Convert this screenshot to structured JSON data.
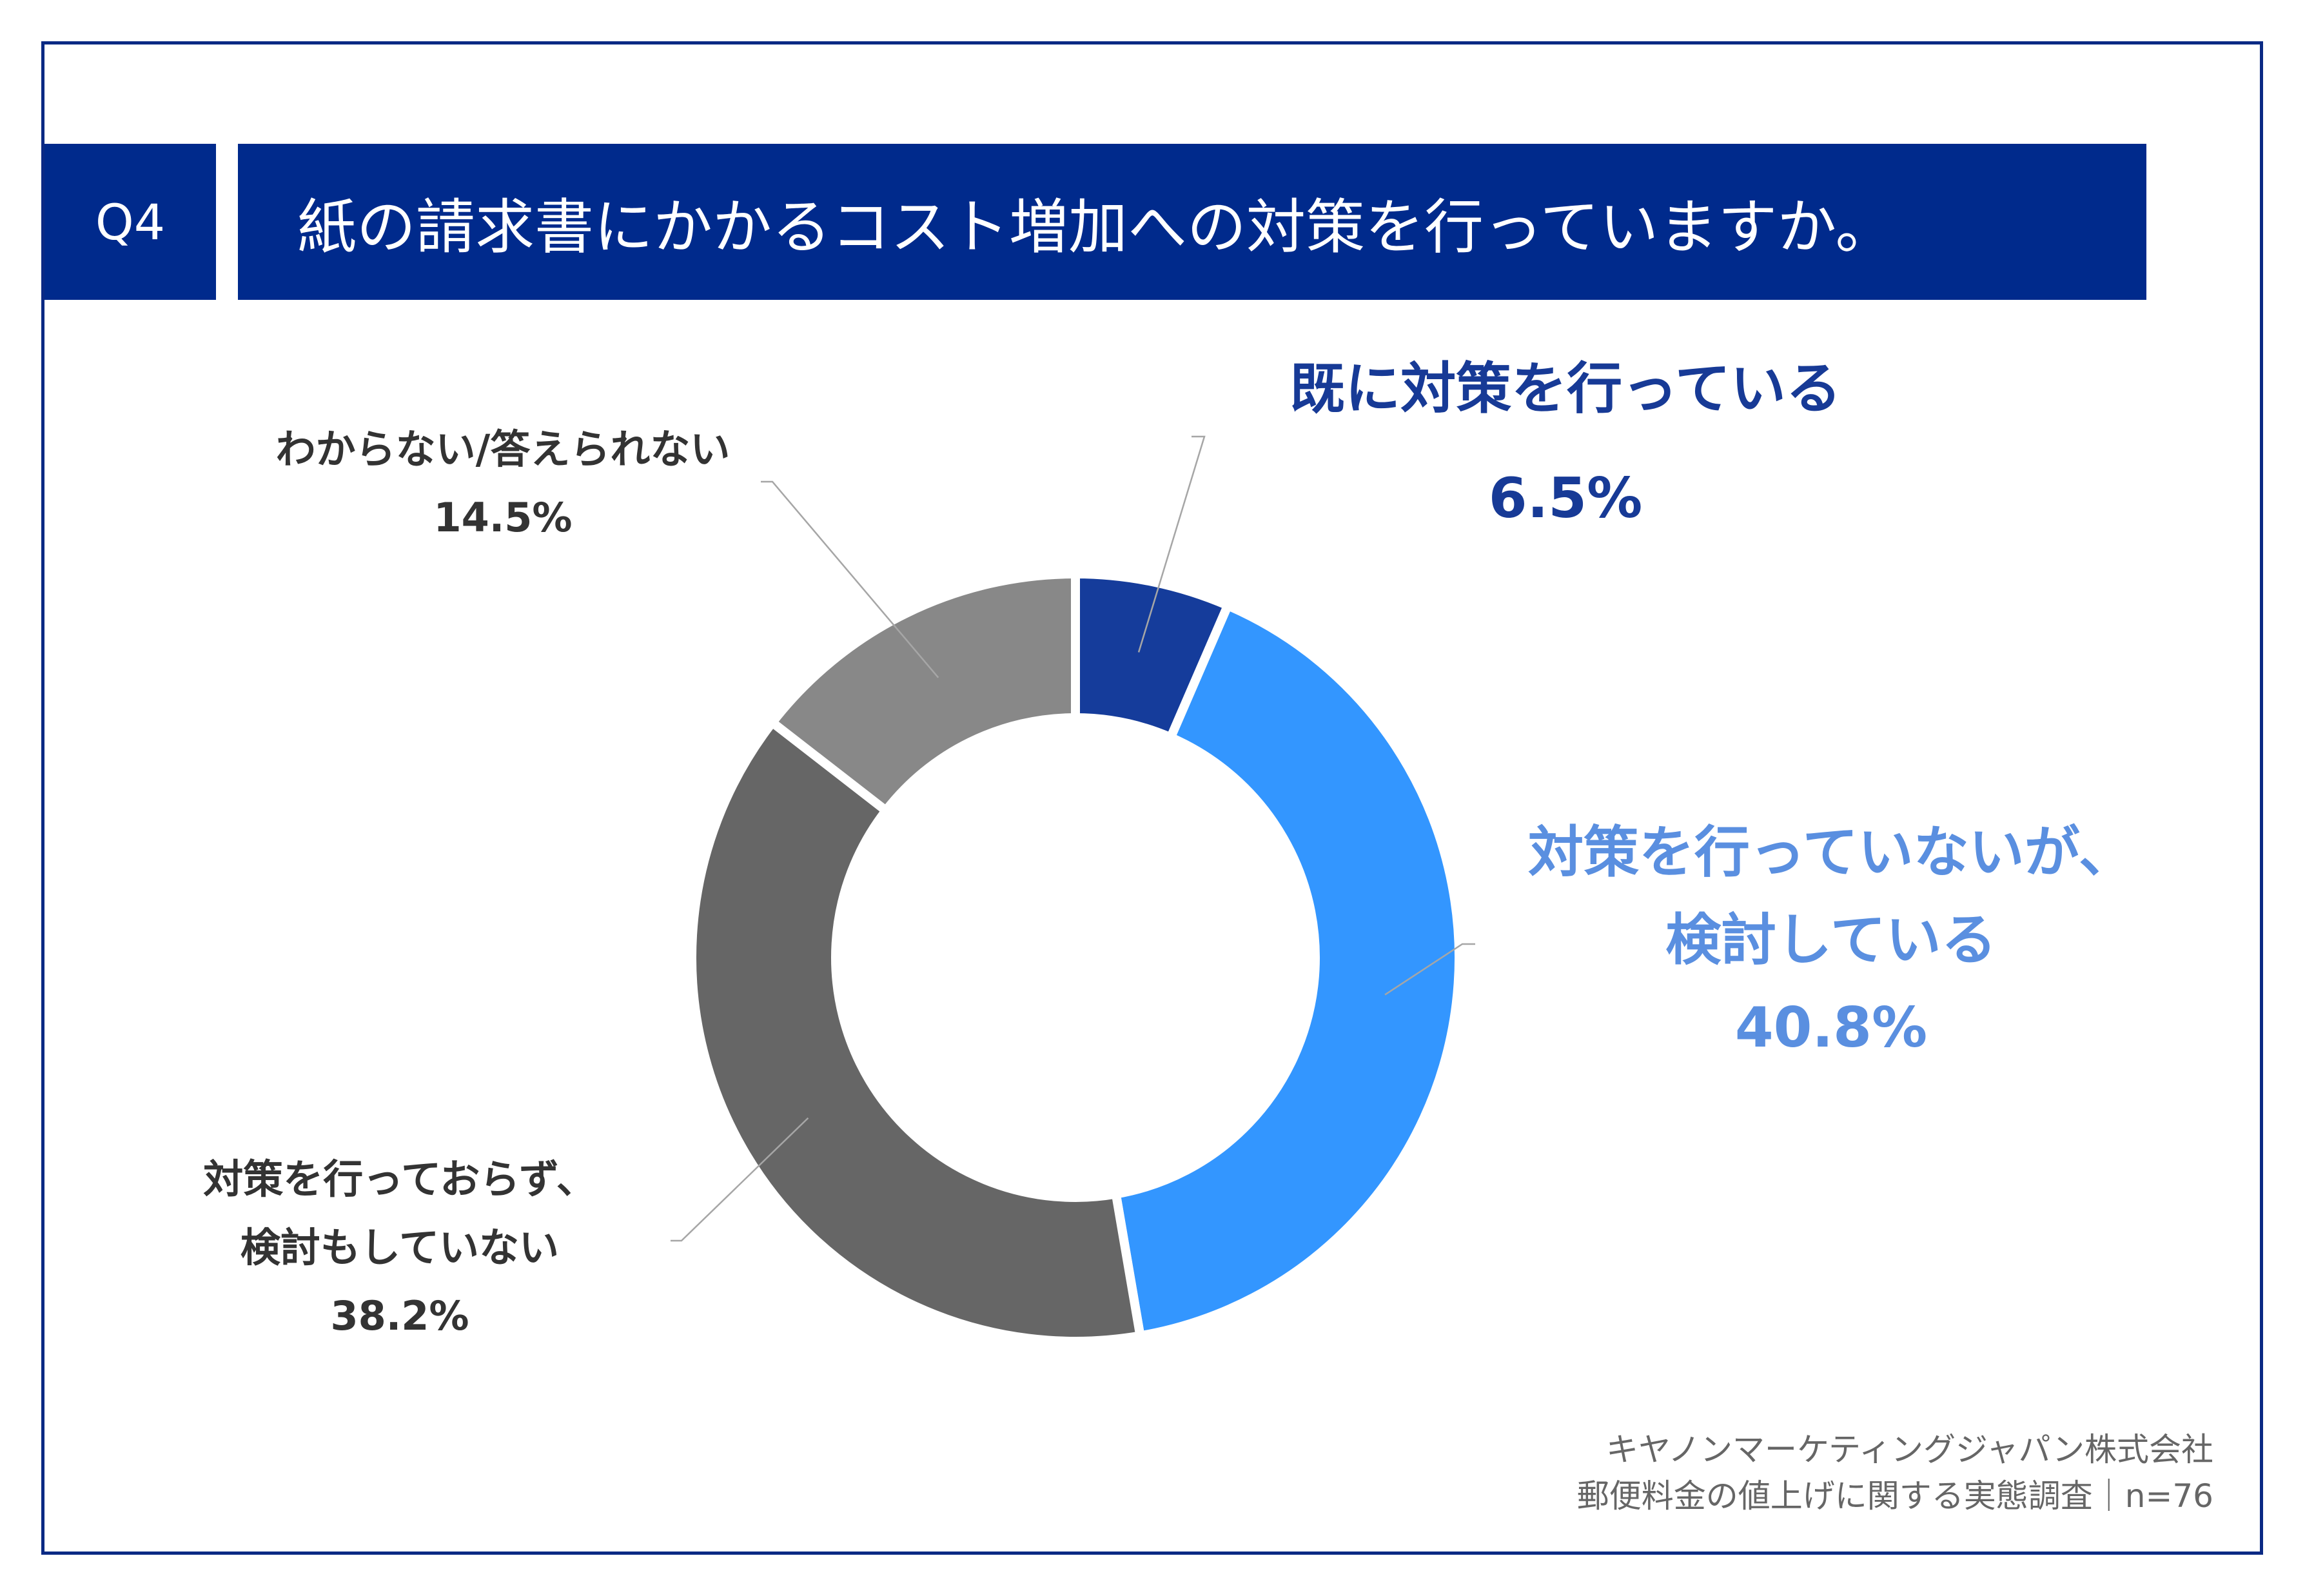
{
  "question": {
    "badge": "Q4",
    "title": "紙の請求書にかかるコスト増加への対策を行っていますか。"
  },
  "chart_data": {
    "type": "pie",
    "variant": "donut",
    "title": "紙の請求書にかかるコスト増加への対策を行っていますか。",
    "series": [
      {
        "name": "既に対策を行っている",
        "label_lines": [
          "既に対策を行っている"
        ],
        "value": 6.5,
        "value_label": "6.5%",
        "color": "#153c9b",
        "label_color": "#173a96"
      },
      {
        "name": "対策を行っていないが、検討している",
        "label_lines": [
          "対策を行っていないが、",
          "検討している"
        ],
        "value": 40.8,
        "value_label": "40.8%",
        "color": "#3396ff",
        "label_color": "#5a8fe0"
      },
      {
        "name": "対策を行っておらず、検討もしていない",
        "label_lines": [
          "対策を行っておらず、",
          "検討もしていない"
        ],
        "value": 38.2,
        "value_label": "38.2%",
        "color": "#666666",
        "label_color": "#333333"
      },
      {
        "name": "わからない/答えられない",
        "label_lines": [
          "わからない/答えられない"
        ],
        "value": 14.5,
        "value_label": "14.5%",
        "color": "#888888",
        "label_color": "#333333"
      }
    ]
  },
  "source": {
    "line1": "キヤノンマーケティングジャパン株式会社",
    "line2": "郵便料金の値上げに関する実態調査｜n=76"
  }
}
